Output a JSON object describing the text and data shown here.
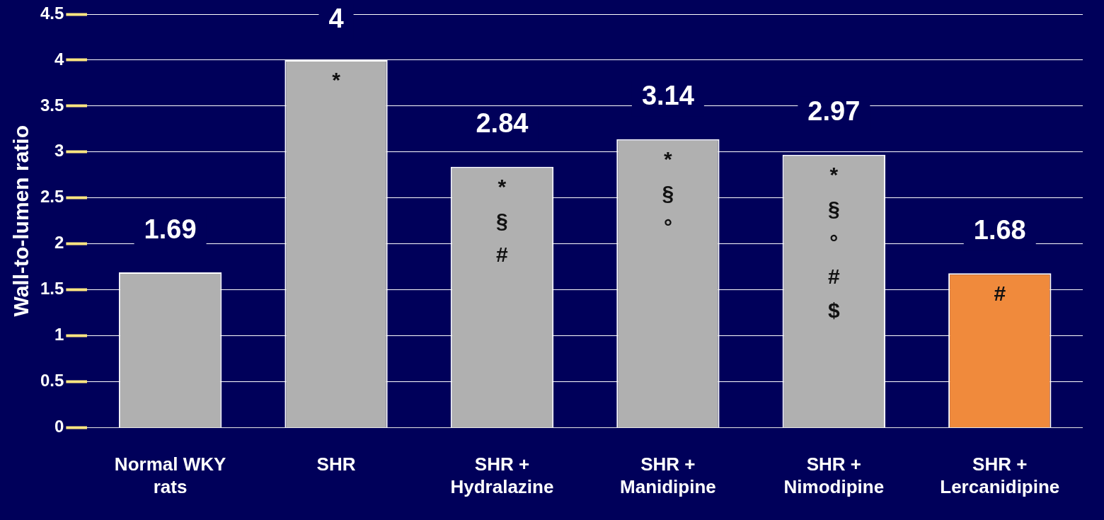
{
  "chart_data": {
    "type": "bar",
    "ylabel": "Wall-to-lumen ratio",
    "categories": [
      "Normal WKY\nrats",
      "SHR",
      "SHR +\nHydralazine",
      "SHR +\nManidipine",
      "SHR +\nNimodipine",
      "SHR +\nLercanidipine"
    ],
    "values": [
      1.69,
      4,
      2.84,
      3.14,
      2.97,
      1.68
    ],
    "colors": [
      "#b0b0b0",
      "#b0b0b0",
      "#b0b0b0",
      "#b0b0b0",
      "#b0b0b0",
      "#f08a3c"
    ],
    "ylim": [
      0,
      4.5
    ],
    "yticks": [
      0,
      0.5,
      1,
      1.5,
      2,
      2.5,
      3,
      3.5,
      4,
      4.5
    ],
    "grid": "y",
    "data_labels": true,
    "annotations": [
      "*",
      "*\n§\n#",
      "*\n§\n°",
      "*\n§\n°\n#\n$",
      "#"
    ]
  }
}
